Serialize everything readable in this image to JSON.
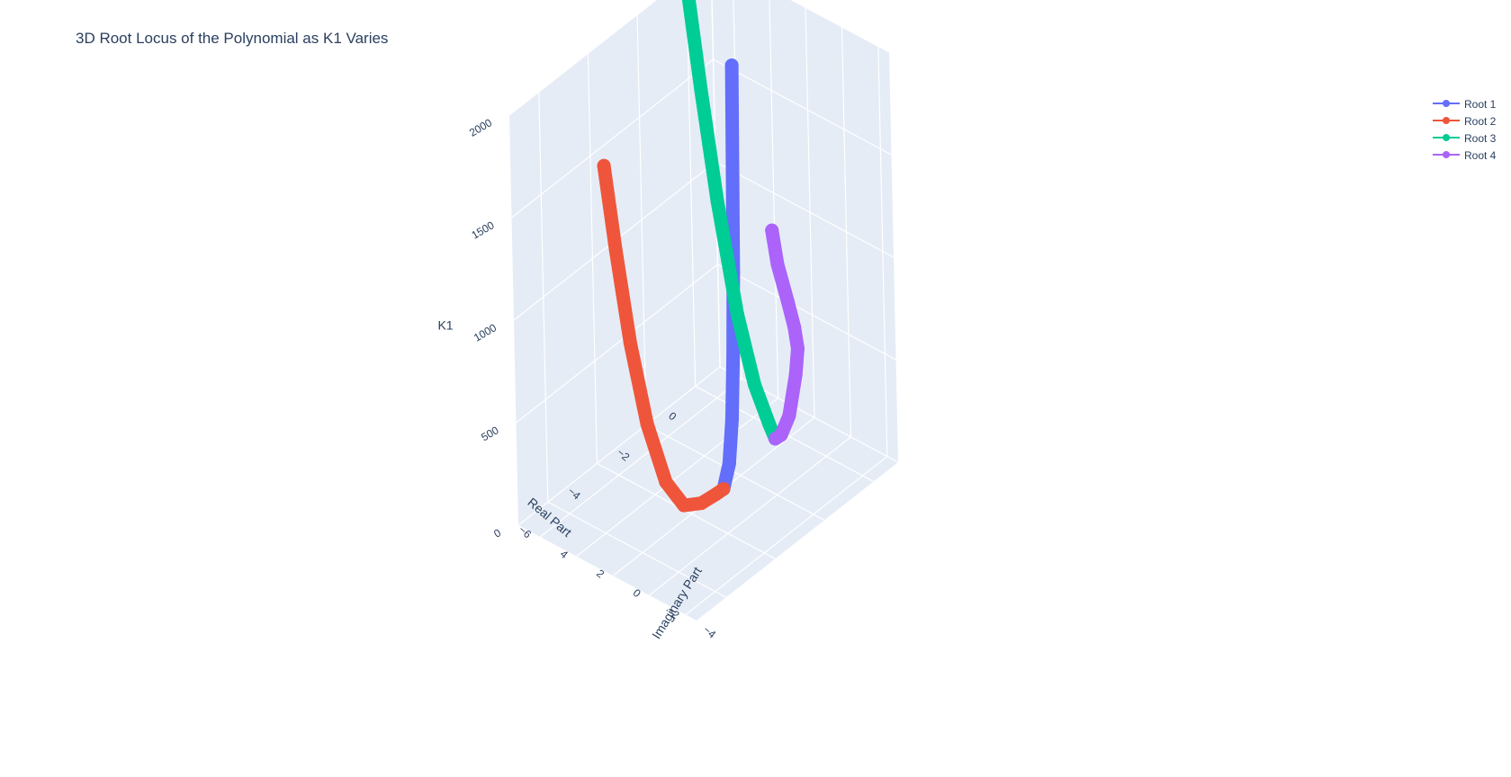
{
  "chart_data": {
    "type": "line",
    "title": "3D Root Locus of the Polynomial as K1 Varies",
    "mode": "lines+markers",
    "axes": {
      "x": {
        "label": "Real Part",
        "ticks": [
          "−6",
          "−4",
          "−2",
          "0"
        ]
      },
      "y": {
        "label": "Imaginary Part",
        "ticks": [
          "−4",
          "−2",
          "0",
          "2",
          "4"
        ]
      },
      "z": {
        "label": "K1",
        "ticks": [
          "0",
          "500",
          "1000",
          "1500",
          "2000"
        ]
      }
    },
    "xlim": [
      -7.2,
      1.0
    ],
    "ylim": [
      -4.6,
      5.2
    ],
    "zlim": [
      0,
      2000
    ],
    "grid": true,
    "legend_position": "top-right",
    "background_color": "#e5ecf6",
    "series": [
      {
        "name": "Root 1",
        "color": "#636efa",
        "points": [
          [
            -2.7,
            0,
            0
          ],
          [
            -2.45,
            0,
            100
          ],
          [
            -2.3,
            0,
            300
          ],
          [
            -2.2,
            0,
            600
          ],
          [
            -2.12,
            0,
            1000
          ],
          [
            -2.06,
            0,
            1500
          ],
          [
            -2.0,
            0,
            2000
          ]
        ]
      },
      {
        "name": "Root 2",
        "color": "#ef553b",
        "points": [
          [
            -2.7,
            0,
            0
          ],
          [
            -3.0,
            0,
            3
          ],
          [
            -3.6,
            0,
            15
          ],
          [
            -4.3,
            0,
            70
          ],
          [
            -5.0,
            0,
            250
          ],
          [
            -5.7,
            0,
            600
          ],
          [
            -6.3,
            0,
            1050
          ],
          [
            -6.8,
            0,
            1550
          ],
          [
            -7.2,
            0,
            2000
          ]
        ]
      },
      {
        "name": "Root 3",
        "color": "#00cc96",
        "points": [
          [
            -0.3,
            0.4,
            0
          ],
          [
            -0.25,
            0.8,
            50
          ],
          [
            -0.22,
            1.6,
            200
          ],
          [
            -0.2,
            2.5,
            500
          ],
          [
            -0.18,
            3.5,
            1000
          ],
          [
            -0.16,
            4.3,
            1500
          ],
          [
            -0.15,
            5.0,
            2000
          ]
        ]
      },
      {
        "name": "Root 4",
        "color": "#ab63fa",
        "points": [
          [
            -0.3,
            0.4,
            0
          ],
          [
            -0.28,
            0.1,
            30
          ],
          [
            -0.3,
            -0.4,
            150
          ],
          [
            -0.36,
            -0.9,
            380
          ],
          [
            -0.4,
            -1.1,
            520
          ],
          [
            -0.3,
            -0.8,
            600
          ],
          [
            -0.25,
            -0.4,
            700
          ],
          [
            -0.2,
            0.2,
            850
          ],
          [
            -0.18,
            0.5,
            1000
          ]
        ]
      }
    ]
  }
}
